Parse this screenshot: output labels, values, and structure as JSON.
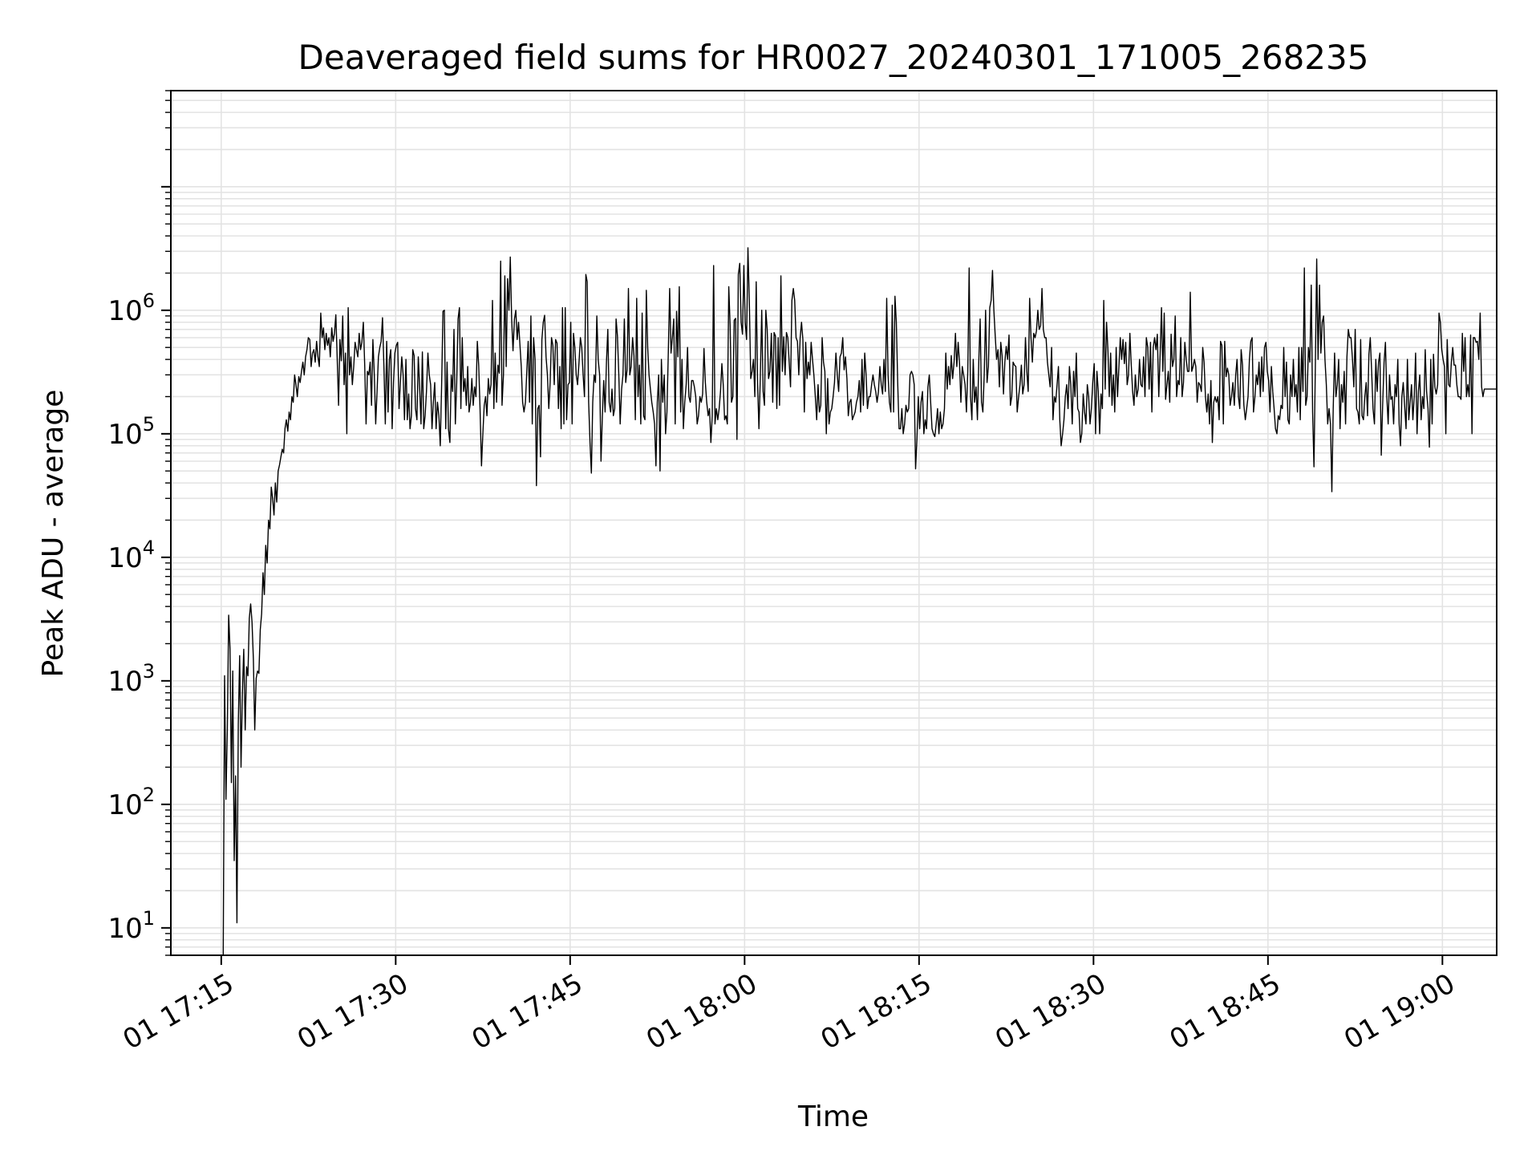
{
  "chart_data": {
    "type": "line",
    "title": "Deaveraged field sums for HR0027_20240301_171005_268235",
    "xlabel": "Time",
    "ylabel": "Peak ADU - average",
    "yscale": "log",
    "xlim": [
      "2024-03-01 17:10:40",
      "2024-03-01 19:04:40"
    ],
    "ylim": [
      6,
      60000000
    ],
    "grid": true,
    "x_ticks": [
      {
        "label": "01 17:15",
        "minute": 1035
      },
      {
        "label": "01 17:30",
        "minute": 1050
      },
      {
        "label": "01 17:45",
        "minute": 1065
      },
      {
        "label": "01 18:00",
        "minute": 1080
      },
      {
        "label": "01 18:15",
        "minute": 1095
      },
      {
        "label": "01 18:30",
        "minute": 1110
      },
      {
        "label": "01 18:45",
        "minute": 1125
      },
      {
        "label": "01 19:00",
        "minute": 1140
      }
    ],
    "y_ticks": [
      {
        "base": "10",
        "exp": "1",
        "value": 10
      },
      {
        "base": "10",
        "exp": "2",
        "value": 100
      },
      {
        "base": "10",
        "exp": "3",
        "value": 1000
      },
      {
        "base": "10",
        "exp": "4",
        "value": 10000
      },
      {
        "base": "10",
        "exp": "5",
        "value": 100000
      },
      {
        "base": "10",
        "exp": "6",
        "value": 1000000
      }
    ],
    "line_color": "#000000",
    "series": [
      {
        "x_start": "2024-03-01 17:15:10",
        "x_end": "2024-03-01 19:04:40",
        "values": [
          6,
          1100,
          110,
          400,
          3400,
          1800,
          150,
          1200,
          35,
          170,
          11,
          450,
          1600,
          200,
          800,
          1800,
          400,
          1300,
          1100,
          3200,
          4200,
          3000,
          1500,
          400,
          1050,
          1200,
          1150,
          2600,
          3500,
          7500,
          5000,
          12500,
          9000,
          20000,
          17000,
          37000,
          30000,
          22000,
          40000,
          28000,
          50000,
          56000,
          65000,
          75000,
          70000,
          110000,
          130000,
          105000,
          150000,
          130000,
          200000,
          180000,
          300000,
          250000,
          200000,
          290000,
          260000,
          320000,
          380000,
          300000,
          420000,
          480000,
          600000,
          580000,
          350000,
          450000,
          480000,
          380000,
          560000,
          420000,
          350000,
          950000,
          600000,
          720000,
          480000,
          650000,
          520000,
          600000,
          420000,
          720000,
          560000,
          650000,
          920000,
          410000,
          170000,
          580000,
          390000,
          900000,
          250000,
          450000,
          100000,
          1050000,
          300000,
          420000,
          250000,
          350000,
          550000,
          480000,
          420000,
          650000,
          480000,
          550000,
          800000,
          360000,
          120000,
          320000,
          300000,
          380000,
          170000,
          580000,
          300000,
          120000,
          220000,
          420000,
          500000,
          560000,
          870000,
          360000,
          120000,
          560000,
          150000,
          400000,
          480000,
          110000,
          260000,
          450000,
          520000,
          550000,
          160000,
          260000,
          420000,
          300000,
          130000,
          400000,
          130000,
          210000,
          110000,
          140000,
          480000,
          430000,
          160000,
          130000,
          420000,
          240000,
          120000,
          460000,
          110000,
          140000,
          220000,
          450000,
          300000,
          250000,
          110000,
          180000,
          260000,
          110000,
          180000,
          140000,
          80000,
          250000,
          980000,
          1000000,
          110000,
          380000,
          110000,
          85000,
          300000,
          220000,
          700000,
          120000,
          260000,
          850000,
          1050000,
          160000,
          600000,
          220000,
          280000,
          170000,
          350000,
          150000,
          180000,
          280000,
          170000,
          240000,
          200000,
          560000,
          360000,
          160000,
          55000,
          100000,
          170000,
          200000,
          140000,
          280000,
          210000,
          250000,
          1200000,
          160000,
          450000,
          180000,
          360000,
          310000,
          2500000,
          170000,
          300000,
          1900000,
          350000,
          1800000,
          1000000,
          2700000,
          850000,
          470000,
          850000,
          1000000,
          580000,
          800000,
          530000,
          350000,
          180000,
          150000,
          180000,
          320000,
          560000,
          180000,
          900000,
          120000,
          600000,
          400000,
          38000,
          160000,
          170000,
          65000,
          580000,
          800000,
          910000,
          420000,
          300000,
          160000,
          260000,
          600000,
          520000,
          250000,
          580000,
          540000,
          160000,
          350000,
          110000,
          1050000,
          120000,
          1050000,
          130000,
          250000,
          260000,
          800000,
          120000,
          650000,
          500000,
          300000,
          250000,
          380000,
          600000,
          500000,
          300000,
          200000,
          1950000,
          1700000,
          180000,
          85000,
          48000,
          180000,
          300000,
          260000,
          900000,
          400000,
          300000,
          60000,
          140000,
          270000,
          150000,
          380000,
          700000,
          180000,
          150000,
          230000,
          140000,
          160000,
          850000,
          620000,
          300000,
          120000,
          230000,
          300000,
          850000,
          260000,
          330000,
          1500000,
          300000,
          350000,
          600000,
          430000,
          130000,
          1250000,
          200000,
          360000,
          120000,
          950000,
          140000,
          130000,
          1450000,
          500000,
          300000,
          230000,
          180000,
          150000,
          120000,
          55000,
          180000,
          300000,
          50000,
          400000,
          180000,
          300000,
          100000,
          150000,
          450000,
          1500000,
          450000,
          600000,
          850000,
          120000,
          980000,
          420000,
          1550000,
          150000,
          400000,
          110000,
          180000,
          250000,
          500000,
          200000,
          180000,
          270000,
          270000,
          240000,
          200000,
          120000,
          140000,
          200000,
          180000,
          210000,
          490000,
          260000,
          180000,
          140000,
          160000,
          85000,
          140000,
          2300000,
          120000,
          160000,
          130000,
          160000,
          220000,
          370000,
          250000,
          130000,
          140000,
          120000,
          1550000,
          750000,
          180000,
          200000,
          830000,
          860000,
          90000,
          1950000,
          2400000,
          800000,
          640000,
          2300000,
          800000,
          580000,
          3200000,
          1200000,
          280000,
          320000,
          400000,
          200000,
          1700000,
          260000,
          110000,
          280000,
          1000000,
          220000,
          170000,
          1000000,
          700000,
          280000,
          320000,
          650000,
          180000,
          660000,
          620000,
          160000,
          600000,
          170000,
          1900000,
          320000,
          610000,
          300000,
          660000,
          600000,
          380000,
          240000,
          1200000,
          1500000,
          1200000,
          600000,
          560000,
          300000,
          600000,
          800000,
          580000,
          150000,
          550000,
          280000,
          380000,
          300000,
          550000,
          400000,
          300000,
          200000,
          130000,
          250000,
          150000,
          170000,
          600000,
          380000,
          320000,
          100000,
          280000,
          120000,
          150000,
          160000,
          200000,
          260000,
          450000,
          300000,
          220000,
          420000,
          450000,
          600000,
          330000,
          420000,
          280000,
          140000,
          180000,
          190000,
          130000,
          140000,
          150000,
          180000,
          200000,
          270000,
          150000,
          400000,
          170000,
          450000,
          300000,
          160000,
          200000,
          200000,
          250000,
          300000,
          250000,
          220000,
          180000,
          220000,
          350000,
          250000,
          210000,
          400000,
          220000,
          1250000,
          300000,
          180000,
          150000,
          1100000,
          150000,
          1300000,
          800000,
          260000,
          110000,
          110000,
          160000,
          100000,
          120000,
          170000,
          150000,
          160000,
          300000,
          320000,
          300000,
          250000,
          52000,
          90000,
          200000,
          110000,
          180000,
          220000,
          100000,
          130000,
          110000,
          240000,
          300000,
          180000,
          110000,
          100000,
          95000,
          120000,
          160000,
          100000,
          150000,
          110000,
          120000,
          160000,
          450000,
          230000,
          350000,
          250000,
          430000,
          280000,
          380000,
          650000,
          350000,
          550000,
          370000,
          180000,
          350000,
          300000,
          250000,
          150000,
          320000,
          2200000,
          200000,
          130000,
          400000,
          180000,
          240000,
          130000,
          380000,
          850000,
          180000,
          150000,
          300000,
          1000000,
          260000,
          350000,
          1050000,
          1200000,
          2100000,
          1000000,
          620000,
          400000,
          480000,
          240000,
          550000,
          430000,
          210000,
          380000,
          510000,
          400000,
          630000,
          170000,
          200000,
          380000,
          360000,
          350000,
          150000,
          200000,
          250000,
          360000,
          210000,
          250000,
          600000,
          320000,
          220000,
          1250000,
          600000,
          380000,
          650000,
          600000,
          680000,
          1000000,
          700000,
          750000,
          1500000,
          700000,
          600000,
          600000,
          380000,
          300000,
          240000,
          500000,
          130000,
          200000,
          180000,
          250000,
          350000,
          130000,
          80000,
          100000,
          130000,
          200000,
          250000,
          160000,
          350000,
          250000,
          120000,
          320000,
          200000,
          450000,
          160000,
          150000,
          85000,
          100000,
          210000,
          150000,
          120000,
          250000,
          200000,
          120000,
          160000,
          260000,
          370000,
          100000,
          320000,
          220000,
          100000,
          210000,
          160000,
          1200000,
          230000,
          800000,
          480000,
          200000,
          450000,
          170000,
          300000,
          150000,
          500000,
          200000,
          350000,
          600000,
          400000,
          580000,
          370000,
          550000,
          250000,
          300000,
          650000,
          360000,
          220000,
          170000,
          300000,
          200000,
          230000,
          400000,
          250000,
          240000,
          420000,
          200000,
          600000,
          500000,
          230000,
          550000,
          150000,
          500000,
          600000,
          480000,
          640000,
          200000,
          440000,
          1050000,
          320000,
          950000,
          190000,
          250000,
          320000,
          180000,
          640000,
          350000,
          400000,
          900000,
          200000,
          270000,
          250000,
          600000,
          200000,
          260000,
          550000,
          400000,
          320000,
          320000,
          1400000,
          320000,
          350000,
          400000,
          350000,
          180000,
          260000,
          250000,
          220000,
          500000,
          380000,
          200000,
          150000,
          210000,
          120000,
          270000,
          85000,
          180000,
          200000,
          180000,
          200000,
          130000,
          560000,
          520000,
          120000,
          560000,
          290000,
          340000,
          300000,
          170000,
          200000,
          260000,
          170000,
          300000,
          400000,
          200000,
          160000,
          480000,
          360000,
          170000,
          130000,
          160000,
          200000,
          400000,
          560000,
          600000,
          150000,
          200000,
          300000,
          250000,
          380000,
          200000,
          420000,
          220000,
          500000,
          550000,
          320000,
          270000,
          150000,
          350000,
          220000,
          160000,
          110000,
          100000,
          140000,
          130000,
          170000,
          160000,
          500000,
          200000,
          380000,
          130000,
          120000,
          300000,
          200000,
          400000,
          200000,
          250000,
          150000,
          500000,
          130000,
          500000,
          220000,
          2200000,
          170000,
          200000,
          500000,
          380000,
          1600000,
          150000,
          54000,
          350000,
          2600000,
          400000,
          1600000,
          450000,
          800000,
          900000,
          400000,
          250000,
          120000,
          160000,
          120000,
          34000,
          160000,
          450000,
          200000,
          250000,
          400000,
          110000,
          250000,
          180000,
          320000,
          120000,
          420000,
          700000,
          600000,
          600000,
          400000,
          240000,
          700000,
          160000,
          150000,
          120000,
          580000,
          140000,
          130000,
          200000,
          260000,
          140000,
          440000,
          600000,
          320000,
          160000,
          120000,
          400000,
          220000,
          380000,
          450000,
          67000,
          170000,
          380000,
          550000,
          200000,
          120000,
          300000,
          190000,
          200000,
          120000,
          250000,
          200000,
          400000,
          120000,
          80000,
          200000,
          260000,
          170000,
          110000,
          400000,
          130000,
          180000,
          250000,
          130000,
          200000,
          450000,
          100000,
          220000,
          300000,
          130000,
          200000,
          160000,
          480000,
          220000,
          160000,
          78000,
          400000,
          120000,
          440000,
          240000,
          210000,
          250000,
          950000,
          800000,
          480000,
          400000,
          350000,
          100000,
          580000,
          250000,
          240000,
          380000,
          500000,
          360000,
          360000,
          250000,
          200000,
          200000,
          190000,
          650000,
          320000,
          600000,
          200000,
          250000,
          200000,
          630000,
          100000,
          600000,
          600000,
          550000,
          560000,
          400000,
          950000,
          240000,
          200000,
          230000,
          230000,
          230000,
          230000,
          230000,
          230000,
          230000,
          230000,
          230000,
          230000
        ]
      }
    ]
  }
}
